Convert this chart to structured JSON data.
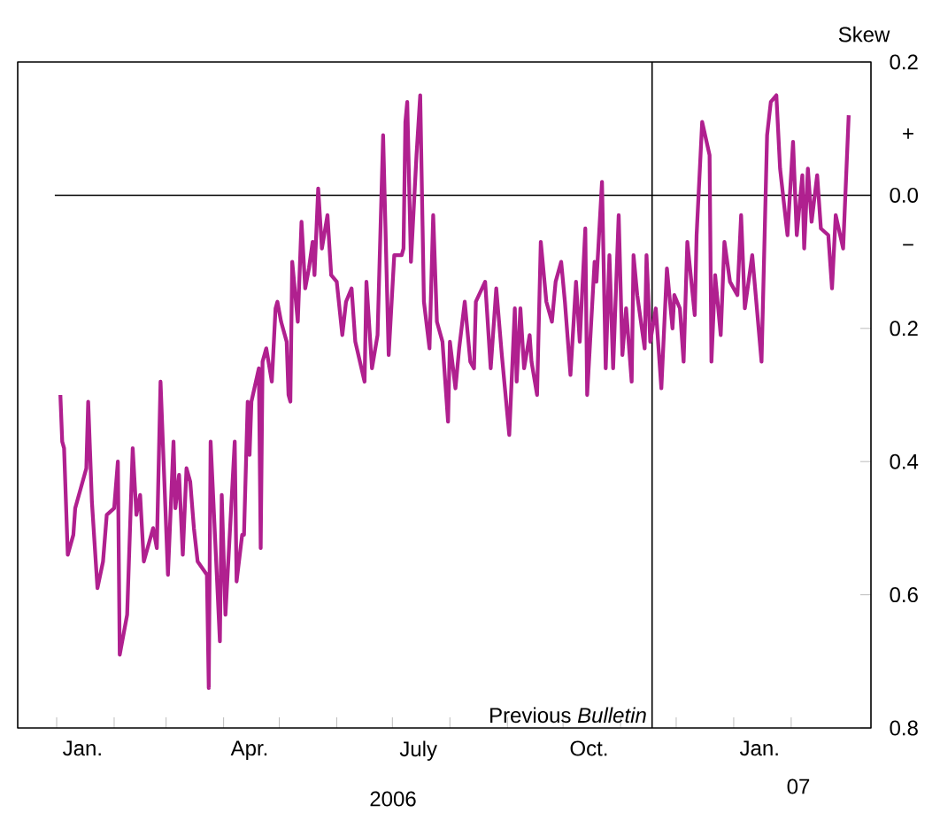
{
  "chart_data": {
    "type": "line",
    "ylabel": "Skew",
    "color": "#b0208f",
    "line_style": "solid",
    "x": [
      "2006-01-03",
      "2006-01-04",
      "2006-01-05",
      "2006-01-07",
      "2006-01-10",
      "2006-01-11",
      "2006-01-17",
      "2006-01-18",
      "2006-01-20",
      "2006-01-23",
      "2006-01-26",
      "2006-01-28",
      "2006-02-01",
      "2006-02-03",
      "2006-02-04",
      "2006-02-08",
      "2006-02-11",
      "2006-02-13",
      "2006-02-15",
      "2006-02-17",
      "2006-02-22",
      "2006-02-24",
      "2006-02-26",
      "2006-03-02",
      "2006-03-05",
      "2006-03-06",
      "2006-03-08",
      "2006-03-10",
      "2006-03-12",
      "2006-03-14",
      "2006-03-16",
      "2006-03-18",
      "2006-03-23",
      "2006-03-24",
      "2006-03-25",
      "2006-03-30",
      "2006-03-31",
      "2006-04-02",
      "2006-04-07",
      "2006-04-08",
      "2006-04-11",
      "2006-04-12",
      "2006-04-14",
      "2006-04-15",
      "2006-04-16",
      "2006-04-20",
      "2006-04-21",
      "2006-04-22",
      "2006-04-24",
      "2006-04-27",
      "2006-04-29",
      "2006-04-30",
      "2006-05-02",
      "2006-05-05",
      "2006-05-06",
      "2006-05-07",
      "2006-05-08",
      "2006-05-11",
      "2006-05-13",
      "2006-05-15",
      "2006-05-17",
      "2006-05-19",
      "2006-05-20",
      "2006-05-22",
      "2006-05-24",
      "2006-05-27",
      "2006-05-29",
      "2006-06-01",
      "2006-06-04",
      "2006-06-06",
      "2006-06-09",
      "2006-06-11",
      "2006-06-16",
      "2006-06-17",
      "2006-06-20",
      "2006-06-23",
      "2006-06-26",
      "2006-06-29",
      "2006-07-02",
      "2006-07-06",
      "2006-07-07",
      "2006-07-08",
      "2006-07-09",
      "2006-07-11",
      "2006-07-14",
      "2006-07-16",
      "2006-07-18",
      "2006-07-21",
      "2006-07-23",
      "2006-07-25",
      "2006-07-28",
      "2006-07-31",
      "2006-08-01",
      "2006-08-04",
      "2006-08-06",
      "2006-08-09",
      "2006-08-12",
      "2006-08-14",
      "2006-08-15",
      "2006-08-20",
      "2006-08-23",
      "2006-08-26",
      "2006-08-29",
      "2006-09-02",
      "2006-09-05",
      "2006-09-06",
      "2006-09-08",
      "2006-09-10",
      "2006-09-13",
      "2006-09-14",
      "2006-09-17",
      "2006-09-19",
      "2006-09-22",
      "2006-09-25",
      "2006-09-27",
      "2006-09-30",
      "2006-10-02",
      "2006-10-05",
      "2006-10-08",
      "2006-10-10",
      "2006-10-13",
      "2006-10-14",
      "2006-10-18",
      "2006-10-19",
      "2006-10-22",
      "2006-10-24",
      "2006-10-26",
      "2006-10-28",
      "2006-10-31",
      "2006-11-02",
      "2006-11-04",
      "2006-11-07",
      "2006-11-08",
      "2006-11-10",
      "2006-11-14",
      "2006-11-15",
      "2006-11-17",
      "2006-11-20",
      "2006-11-23",
      "2006-11-26",
      "2006-11-29",
      "2006-11-30",
      "2006-12-03",
      "2006-12-05",
      "2006-12-07",
      "2006-12-11",
      "2006-12-12",
      "2006-12-15",
      "2006-12-19",
      "2006-12-20",
      "2006-12-22",
      "2006-12-25",
      "2006-12-27",
      "2006-12-30",
      "2007-01-03",
      "2007-01-05",
      "2007-01-07",
      "2007-01-11",
      "2007-01-16",
      "2007-01-19",
      "2007-01-21",
      "2007-01-24",
      "2007-01-26",
      "2007-01-30",
      "2007-02-02",
      "2007-02-04",
      "2007-02-07",
      "2007-02-08",
      "2007-02-10",
      "2007-02-12",
      "2007-02-15",
      "2007-02-17",
      "2007-02-21",
      "2007-02-23",
      "2007-02-25",
      "2007-03-01",
      "2007-03-04"
    ],
    "values": [
      -0.3,
      -0.37,
      -0.38,
      -0.54,
      -0.51,
      -0.47,
      -0.41,
      -0.31,
      -0.46,
      -0.59,
      -0.55,
      -0.48,
      -0.47,
      -0.4,
      -0.69,
      -0.63,
      -0.38,
      -0.48,
      -0.45,
      -0.55,
      -0.5,
      -0.53,
      -0.28,
      -0.57,
      -0.37,
      -0.47,
      -0.42,
      -0.54,
      -0.41,
      -0.43,
      -0.5,
      -0.55,
      -0.57,
      -0.74,
      -0.37,
      -0.67,
      -0.45,
      -0.63,
      -0.37,
      -0.58,
      -0.51,
      -0.51,
      -0.31,
      -0.39,
      -0.31,
      -0.26,
      -0.53,
      -0.25,
      -0.23,
      -0.28,
      -0.17,
      -0.16,
      -0.19,
      -0.22,
      -0.3,
      -0.31,
      -0.1,
      -0.19,
      -0.04,
      -0.14,
      -0.11,
      -0.07,
      -0.12,
      0.01,
      -0.08,
      -0.03,
      -0.12,
      -0.13,
      -0.21,
      -0.16,
      -0.14,
      -0.22,
      -0.28,
      -0.13,
      -0.26,
      -0.21,
      0.09,
      -0.24,
      -0.09,
      -0.09,
      -0.08,
      0.11,
      0.14,
      -0.1,
      0.06,
      0.15,
      -0.16,
      -0.23,
      -0.03,
      -0.19,
      -0.22,
      -0.34,
      -0.22,
      -0.29,
      -0.23,
      -0.16,
      -0.25,
      -0.26,
      -0.16,
      -0.13,
      -0.26,
      -0.14,
      -0.24,
      -0.36,
      -0.17,
      -0.28,
      -0.17,
      -0.26,
      -0.21,
      -0.25,
      -0.3,
      -0.07,
      -0.16,
      -0.19,
      -0.13,
      -0.1,
      -0.16,
      -0.27,
      -0.13,
      -0.22,
      -0.05,
      -0.3,
      -0.1,
      -0.13,
      0.02,
      -0.26,
      -0.09,
      -0.26,
      -0.03,
      -0.24,
      -0.17,
      -0.28,
      -0.09,
      -0.15,
      -0.23,
      -0.09,
      -0.22,
      -0.17,
      -0.29,
      -0.11,
      -0.2,
      -0.15,
      -0.17,
      -0.25,
      -0.07,
      -0.18,
      -0.06,
      0.11,
      0.06,
      -0.25,
      -0.12,
      -0.21,
      -0.07,
      -0.13,
      -0.15,
      -0.03,
      -0.17,
      -0.09,
      -0.25,
      0.09,
      0.14,
      0.15,
      0.04,
      -0.06,
      0.08,
      -0.06,
      0.03,
      -0.08,
      0.04,
      -0.04,
      0.03,
      -0.05,
      -0.06,
      -0.14,
      -0.03,
      -0.08,
      0.12
    ],
    "xlim": [
      "2005-12-11",
      "2007-03-16"
    ],
    "xticks": [
      {
        "value": "2006-01-01",
        "label": null
      },
      {
        "value": "2006-02-01",
        "label": null
      },
      {
        "value": "2006-03-01",
        "label": null
      },
      {
        "value": "2006-04-01",
        "label": null
      },
      {
        "value": "2006-05-01",
        "label": null
      },
      {
        "value": "2006-06-01",
        "label": null
      },
      {
        "value": "2006-07-01",
        "label": null
      },
      {
        "value": "2006-08-01",
        "label": null
      },
      {
        "value": "2006-09-01",
        "label": null
      },
      {
        "value": "2006-10-01",
        "label": null
      },
      {
        "value": "2006-11-01",
        "label": null
      },
      {
        "value": "2006-12-01",
        "label": null
      },
      {
        "value": "2007-01-01",
        "label": null
      },
      {
        "value": "2007-02-01",
        "label": null
      },
      {
        "value": "2006-01-15",
        "label": "Jan."
      },
      {
        "value": "2006-04-15",
        "label": "Apr."
      },
      {
        "value": "2006-07-15",
        "label": "July"
      },
      {
        "value": "2006-10-15",
        "label": "Oct."
      },
      {
        "value": "2007-01-15",
        "label": "Jan."
      }
    ],
    "ylim": [
      -0.8,
      0.2
    ],
    "yticks": [
      0.2,
      {
        "value": 0,
        "label": "0.0"
      },
      {
        "value": -0.2,
        "label": "0.2"
      },
      {
        "value": -0.4,
        "label": "0.4"
      },
      {
        "value": -0.6,
        "label": "0.6"
      },
      {
        "value": -0.8,
        "label": "0.8"
      }
    ],
    "ref_lines": [
      {
        "axis": "y",
        "value": 0
      },
      {
        "axis": "x",
        "value": "2006-11-18",
        "label": "Previous *Bulletin*"
      }
    ],
    "annotations": [
      "+",
      "−",
      "2006",
      "07"
    ]
  }
}
